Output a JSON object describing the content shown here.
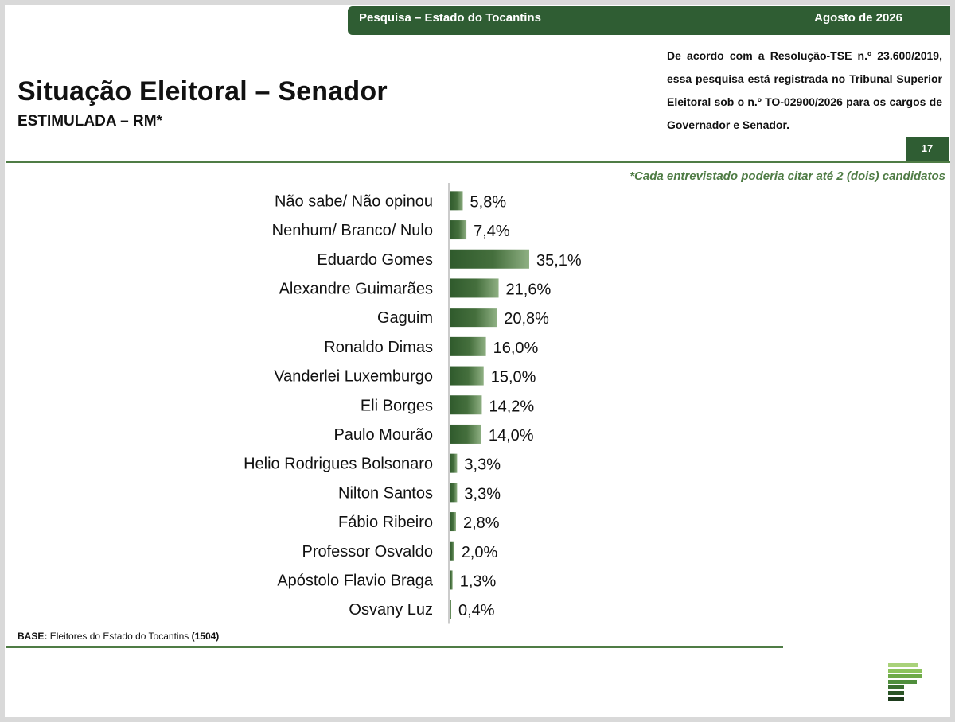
{
  "header": {
    "title": "Pesquisa – Estado do Tocantins",
    "date": "Agosto de 2026"
  },
  "registration_note": "De acordo com a Resolução-TSE n.º 23.600/2019, essa pesquisa está registrada no Tribunal Superior Eleitoral sob o n.º TO-02900/2026 para os cargos de Governador e Senador.",
  "page_number": "17",
  "footnote": "*Cada entrevistado poderia citar até 2 (dois) candidatos",
  "base": {
    "label": "BASE:",
    "text": "Eleitores do Estado do Tocantins",
    "count": "(1504)"
  },
  "colors": {
    "brand_green": "#2f5d33",
    "accent_green": "#4f7c45",
    "bar_dark": "#2f5a2c",
    "bar_light": "#7a9d6e"
  },
  "chart_data": {
    "type": "bar",
    "orientation": "horizontal",
    "title": "Situação Eleitoral – Senador",
    "subtitle": "ESTIMULADA – RM*",
    "categories": [
      "Não sabe/ Não opinou",
      "Nenhum/ Branco/ Nulo",
      "Eduardo Gomes",
      "Alexandre Guimarães",
      "Gaguim",
      "Ronaldo Dimas",
      "Vanderlei Luxemburgo",
      "Eli Borges",
      "Paulo Mourão",
      "Helio Rodrigues Bolsonaro",
      "Nilton Santos",
      "Fábio Ribeiro",
      "Professor Osvaldo",
      "Apóstolo Flavio Braga",
      "Osvany Luz"
    ],
    "values": [
      5.8,
      7.4,
      35.1,
      21.6,
      20.8,
      16.0,
      15.0,
      14.2,
      14.0,
      3.3,
      3.3,
      2.8,
      2.0,
      1.3,
      0.4
    ],
    "labels": [
      "5,8%",
      "7,4%",
      "35,1%",
      "21,6%",
      "20,8%",
      "16,0%",
      "15,0%",
      "14,2%",
      "14,0%",
      "3,3%",
      "3,3%",
      "2,8%",
      "2,0%",
      "1,3%",
      "0,4%"
    ],
    "xlim": [
      0,
      40
    ],
    "grid": false,
    "legend": "none"
  }
}
